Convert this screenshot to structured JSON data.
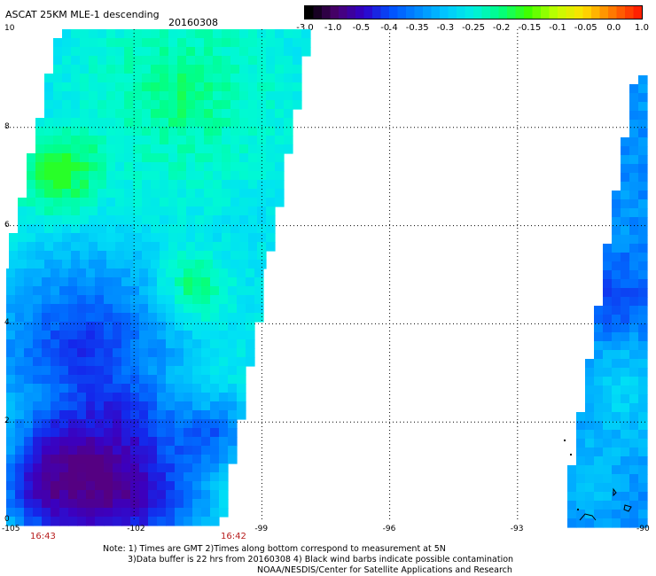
{
  "header": {
    "title": "ASCAT 25KM MLE-1 descending",
    "date": "20160308"
  },
  "colorbar": {
    "labels": [
      "-3.0",
      "-1.0",
      "-0.5",
      "-0.4",
      "-0.35",
      "-0.3",
      "-0.25",
      "-0.2",
      "-0.15",
      "-0.1",
      "-0.05",
      "0.0",
      "1.0"
    ],
    "colors": [
      "#000000",
      "#4b006e",
      "#3000c8",
      "#0050ff",
      "#008cff",
      "#00c8ff",
      "#00f0e0",
      "#00ff80",
      "#40ff00",
      "#c0ff00",
      "#ffe000",
      "#ff8000",
      "#ff2000"
    ]
  },
  "axes": {
    "y_labels": [
      "10",
      "8",
      "6",
      "4",
      "2",
      "0"
    ],
    "x_labels": [
      "-105",
      "-102",
      "-99",
      "-96",
      "-93",
      "-90"
    ]
  },
  "times": [
    "16:43",
    "16:42"
  ],
  "notes": {
    "line1": "Note: 1) Times are GMT 2)Times along bottom correspond to measurement at 5N",
    "line2": "3)Data buffer is 22 hrs from 20160308 4) Black wind barbs indicate possible contamination",
    "line3": "NOAA/NESDIS/Center for Satellite Applications and Research"
  },
  "palette": {
    "background": "#ffffff",
    "grid": "#000000",
    "time_text": "#b71c1c"
  }
}
